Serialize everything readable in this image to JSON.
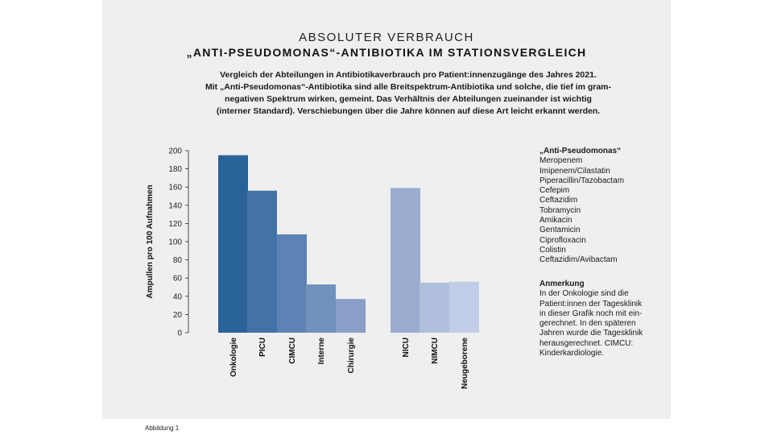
{
  "header": {
    "title": "ABSOLUTER VERBRAUCH",
    "subtitle": "„ANTI-PSEUDOMONAS“-ANTIBIOTIKA IM STATIONSVERGLEICH"
  },
  "intro_lines": [
    "Vergleich der Abteilungen in Antibiotikaverbrauch pro Patient:innenzugänge des Jahres 2021.",
    "Mit „Anti-Pseudomonas“-Antibiotika sind alle Breitspektrum-Antibiotika und solche, die tief im gram-",
    "negativen Spektrum wirken, gemeint. Das Verhältnis der Abteilungen zueinander ist wichtig",
    "(interner Standard). Verschiebungen über die Jahre können auf diese Art leicht erkannt werden."
  ],
  "legend": {
    "heading": "„Anti-Pseudomonas“",
    "items": [
      "Meropenem",
      "Imipenem/Cilastatin",
      "Piperacillin/Tazobactam",
      "Cefepim",
      "Ceftazidim",
      "Tobramycin",
      "Amikacin",
      "Gentamicin",
      "Ciprofloxacin",
      "Colistin",
      "Ceftazidim/Avibactam"
    ]
  },
  "note": {
    "heading": "Anmerkung",
    "lines": [
      "In der Onkologie sind die",
      "Patient:innen der Tagesklinik",
      "in dieser Grafik noch mit ein-",
      "gerechnet. In den späteren",
      "Jahren wurde die Tagesklinik",
      "herausgerechnet. CIMCU:",
      "Kinderkardiologie."
    ]
  },
  "caption": "Abbildung 1",
  "chart_data": {
    "type": "bar",
    "ylabel": "Ampullen pro 100 Aufnahmen",
    "ylim": [
      0,
      200
    ],
    "yticks": [
      0,
      20,
      40,
      60,
      80,
      100,
      120,
      140,
      160,
      180,
      200
    ],
    "grid": false,
    "categories": [
      "Onkologie",
      "PICU",
      "CIMCU",
      "Interne",
      "Chirurgie",
      "NICU",
      "NIMCU",
      "Neugeborene"
    ],
    "values": [
      195,
      156,
      108,
      53,
      37,
      159,
      55,
      56
    ],
    "colors": [
      "#2a6399",
      "#4372a6",
      "#5c83b3",
      "#7091bc",
      "#8a9fc7",
      "#9aadd0",
      "#afbfdc",
      "#c1cde6"
    ]
  }
}
